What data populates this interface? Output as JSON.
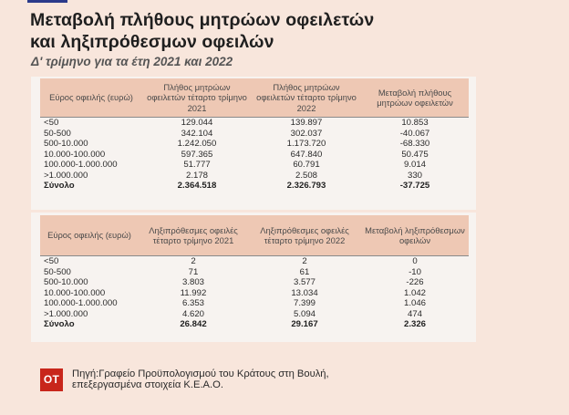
{
  "title_line1": "Μεταβολή πλήθους μητρώων οφειλετών",
  "title_line2": "και ληξιπρόθεσμων οφειλών",
  "subtitle": "Δ' τρίμηνο για τα έτη 2021 και 2022",
  "table1": {
    "headers": [
      "Εύρος οφειλής (ευρώ)",
      "Πλήθος μητρώων οφειλετών τέταρτο τρίμηνο 2021",
      "Πλήθος μητρώων οφειλετών τέταρτο τρίμηνο 2022",
      "Μεταβολή πλήθους μητρώων οφειλετών"
    ],
    "rows": [
      [
        "<50",
        "129.044",
        "139.897",
        "10.853"
      ],
      [
        "50-500",
        "342.104",
        "302.037",
        "-40.067"
      ],
      [
        "500-10.000",
        "1.242.050",
        "1.173.720",
        "-68.330"
      ],
      [
        "10.000-100.000",
        "597.365",
        "647.840",
        "50.475"
      ],
      [
        "100.000-1.000.000",
        "51.777",
        "60.791",
        "9.014"
      ],
      [
        ">1.000.000",
        "2.178",
        "2.508",
        "330"
      ],
      [
        "Σύνολο",
        "2.364.518",
        "2.326.793",
        "-37.725"
      ]
    ]
  },
  "table2": {
    "headers": [
      "Εύρος οφειλής (ευρώ)",
      "Ληξιπρόθεσμες οφειλές τέταρτο τρίμηνο 2021",
      "Ληξιπρόθεσμες οφειλές τέταρτο τρίμηνο 2022",
      "Μεταβολή ληξιπρόθεσμων οφειλών"
    ],
    "rows": [
      [
        "<50",
        "2",
        "2",
        "0"
      ],
      [
        "50-500",
        "71",
        "61",
        "-10"
      ],
      [
        "500-10.000",
        "3.803",
        "3.577",
        "-226"
      ],
      [
        "10.000-100.000",
        "11.992",
        "13.034",
        "1.042"
      ],
      [
        "100.000-1.000.000",
        "6.353",
        "7.399",
        "1.046"
      ],
      [
        ">1.000.000",
        "4.620",
        "5.094",
        "474"
      ],
      [
        "Σύνολο",
        "26.842",
        "29.167",
        "2.326"
      ]
    ]
  },
  "footer": {
    "logo_text": "ΟΤ",
    "source_line1": "Πηγή:Γραφείο Προϋπολογισμού του Κράτους στη Βουλή,",
    "source_line2": "επεξεργασμένα στοιχεία Κ.Ε.Α.Ο."
  },
  "colors": {
    "background": "#f8e6dc",
    "table_header": "#eec8b4",
    "logo": "#c8261b",
    "accent_rule": "#2b3a8a"
  }
}
